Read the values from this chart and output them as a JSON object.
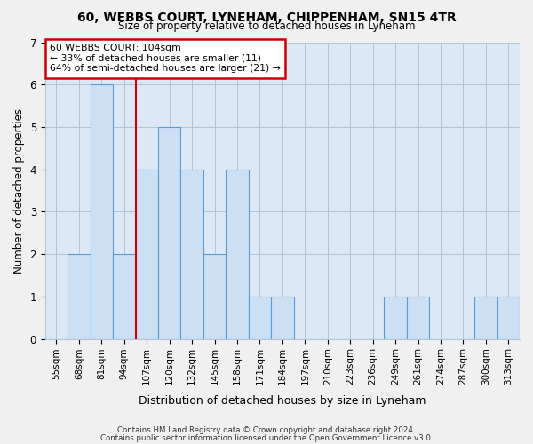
{
  "title1": "60, WEBBS COURT, LYNEHAM, CHIPPENHAM, SN15 4TR",
  "title2": "Size of property relative to detached houses in Lyneham",
  "xlabel": "Distribution of detached houses by size in Lyneham",
  "ylabel": "Number of detached properties",
  "categories": [
    "55sqm",
    "68sqm",
    "81sqm",
    "94sqm",
    "107sqm",
    "120sqm",
    "132sqm",
    "145sqm",
    "158sqm",
    "171sqm",
    "184sqm",
    "197sqm",
    "210sqm",
    "223sqm",
    "236sqm",
    "249sqm",
    "261sqm",
    "274sqm",
    "287sqm",
    "300sqm",
    "313sqm"
  ],
  "values": [
    0,
    2,
    6,
    2,
    4,
    5,
    4,
    2,
    4,
    1,
    1,
    0,
    0,
    0,
    0,
    1,
    1,
    0,
    0,
    1,
    1
  ],
  "bar_color": "#cce0f5",
  "bar_edge_color": "#5b9bd5",
  "grid_color": "#b0c4d8",
  "background_color": "#dce8f5",
  "fig_background_color": "#f0f0f0",
  "annotation_box_color": "#cc0000",
  "vline_color": "#cc0000",
  "annotation_text_line1": "60 WEBBS COURT: 104sqm",
  "annotation_text_line2": "← 33% of detached houses are smaller (11)",
  "annotation_text_line3": "64% of semi-detached houses are larger (21) →",
  "footer1": "Contains HM Land Registry data © Crown copyright and database right 2024.",
  "footer2": "Contains public sector information licensed under the Open Government Licence v3.0.",
  "ylim": [
    0,
    7
  ],
  "yticks": [
    0,
    1,
    2,
    3,
    4,
    5,
    6,
    7
  ],
  "vline_x": 3.5
}
